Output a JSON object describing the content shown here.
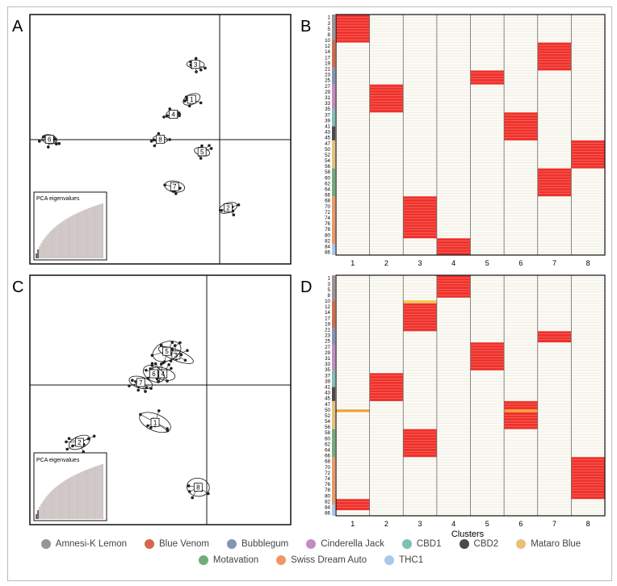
{
  "panel_labels": {
    "a": "A",
    "b": "B",
    "c": "C",
    "d": "D"
  },
  "pca_inset_label": "PCA eigenvalues",
  "clusters_axis_label": "Clusters",
  "cluster_ticks": [
    "1",
    "2",
    "3",
    "4",
    "5",
    "6",
    "7",
    "8"
  ],
  "row_ticks": [
    "1",
    "3",
    "5",
    "8",
    "10",
    "12",
    "14",
    "17",
    "19",
    "21",
    "23",
    "25",
    "27",
    "29",
    "31",
    "33",
    "35",
    "37",
    "39",
    "41",
    "43",
    "45",
    "47",
    "50",
    "52",
    "54",
    "56",
    "58",
    "60",
    "62",
    "64",
    "66",
    "68",
    "70",
    "72",
    "74",
    "76",
    "78",
    "80",
    "82",
    "84",
    "86"
  ],
  "legend": {
    "row1": [
      {
        "name": "Amnesi-K Lemon",
        "color": "#9e9394"
      },
      {
        "name": "Blue Venom",
        "color": "#d4694a"
      },
      {
        "name": "Bubblegum",
        "color": "#8494b8"
      },
      {
        "name": "Cinderella Jack",
        "color": "#c58ac6"
      },
      {
        "name": "CBD1",
        "color": "#7fbfb4"
      },
      {
        "name": "CBD2",
        "color": "#4f4848"
      },
      {
        "name": "Mataro Blue",
        "color": "#e9c078"
      }
    ],
    "row2": [
      {
        "name": "Motavation",
        "color": "#6fae78"
      },
      {
        "name": "Swiss Dream Auto",
        "color": "#ef9764"
      },
      {
        "name": "THC1",
        "color": "#a6c8ea"
      }
    ]
  },
  "chart_data": [
    {
      "type": "scatter",
      "panel": "A",
      "title": "",
      "xlabel": "",
      "ylabel": "",
      "xlim": [
        -1,
        1
      ],
      "ylim": [
        -1,
        1
      ],
      "clusters": [
        {
          "label": "1",
          "center": [
            0.24,
            0.32
          ]
        },
        {
          "label": "2",
          "center": [
            0.52,
            -0.55
          ]
        },
        {
          "label": "3",
          "center": [
            0.27,
            0.6
          ]
        },
        {
          "label": "4",
          "center": [
            0.1,
            0.2
          ]
        },
        {
          "label": "5",
          "center": [
            0.32,
            -0.1
          ]
        },
        {
          "label": "6",
          "center": [
            -0.85,
            0.0
          ]
        },
        {
          "label": "7",
          "center": [
            0.11,
            -0.38
          ]
        },
        {
          "label": "8",
          "center": [
            0.0,
            0.0
          ]
        }
      ],
      "inset": {
        "label": "PCA eigenvalues",
        "shape": "decreasing-cumulative"
      }
    },
    {
      "type": "heatmap",
      "panel": "B",
      "xlabel": "",
      "columns": [
        "1",
        "2",
        "3",
        "4",
        "5",
        "6",
        "7",
        "8"
      ],
      "n_rows": 86,
      "assignments": [
        {
          "cluster": 1,
          "rows": [
            1,
            10
          ]
        },
        {
          "cluster": 7,
          "rows": [
            11,
            20
          ]
        },
        {
          "cluster": 5,
          "rows": [
            21,
            25
          ]
        },
        {
          "cluster": 2,
          "rows": [
            26,
            35
          ]
        },
        {
          "cluster": 6,
          "rows": [
            36,
            45
          ]
        },
        {
          "cluster": 8,
          "rows": [
            46,
            55
          ]
        },
        {
          "cluster": 7,
          "rows": [
            56,
            65
          ]
        },
        {
          "cluster": 3,
          "rows": [
            66,
            80
          ]
        },
        {
          "cluster": 4,
          "rows": [
            81,
            86
          ]
        }
      ],
      "colors": {
        "membership": "#f0302a",
        "partial": "#f5c842",
        "background": "#fbfaf4"
      }
    },
    {
      "type": "scatter",
      "panel": "C",
      "xlim": [
        -1,
        1
      ],
      "ylim": [
        -1,
        1
      ],
      "clusters": [
        {
          "label": "1",
          "center": [
            -0.04,
            -0.18
          ]
        },
        {
          "label": "2",
          "center": [
            -0.62,
            -0.34
          ]
        },
        {
          "label": "3",
          "center": [
            0.12,
            0.36
          ]
        },
        {
          "label": "4",
          "center": [
            0.02,
            0.21
          ]
        },
        {
          "label": "5",
          "center": [
            0.05,
            0.39
          ]
        },
        {
          "label": "6",
          "center": [
            -0.05,
            0.21
          ]
        },
        {
          "label": "7",
          "center": [
            -0.15,
            0.14
          ]
        },
        {
          "label": "8",
          "center": [
            0.29,
            -0.7
          ]
        }
      ],
      "inset": {
        "label": "PCA eigenvalues",
        "shape": "decreasing-cumulative"
      }
    },
    {
      "type": "heatmap",
      "panel": "D",
      "xlabel": "Clusters",
      "columns": [
        "1",
        "2",
        "3",
        "4",
        "5",
        "6",
        "7",
        "8"
      ],
      "n_rows": 86,
      "assignments": [
        {
          "cluster": 4,
          "rows": [
            1,
            8
          ]
        },
        {
          "cluster": 3,
          "rows": [
            10,
            10
          ],
          "partial": true
        },
        {
          "cluster": 3,
          "rows": [
            11,
            20
          ]
        },
        {
          "cluster": 7,
          "rows": [
            21,
            24
          ]
        },
        {
          "cluster": 5,
          "rows": [
            25,
            34
          ]
        },
        {
          "cluster": 2,
          "rows": [
            36,
            45
          ]
        },
        {
          "cluster": 6,
          "rows": [
            46,
            55
          ]
        },
        {
          "cluster": 1,
          "rows": [
            49,
            49
          ],
          "partial": true
        },
        {
          "cluster": 6,
          "rows": [
            49,
            49
          ],
          "partial": true
        },
        {
          "cluster": 3,
          "rows": [
            56,
            65
          ]
        },
        {
          "cluster": 8,
          "rows": [
            66,
            80
          ]
        },
        {
          "cluster": 1,
          "rows": [
            81,
            84
          ]
        }
      ],
      "colors": {
        "membership": "#f0302a",
        "partial": "#f5c842",
        "background": "#fbfaf4"
      }
    }
  ]
}
